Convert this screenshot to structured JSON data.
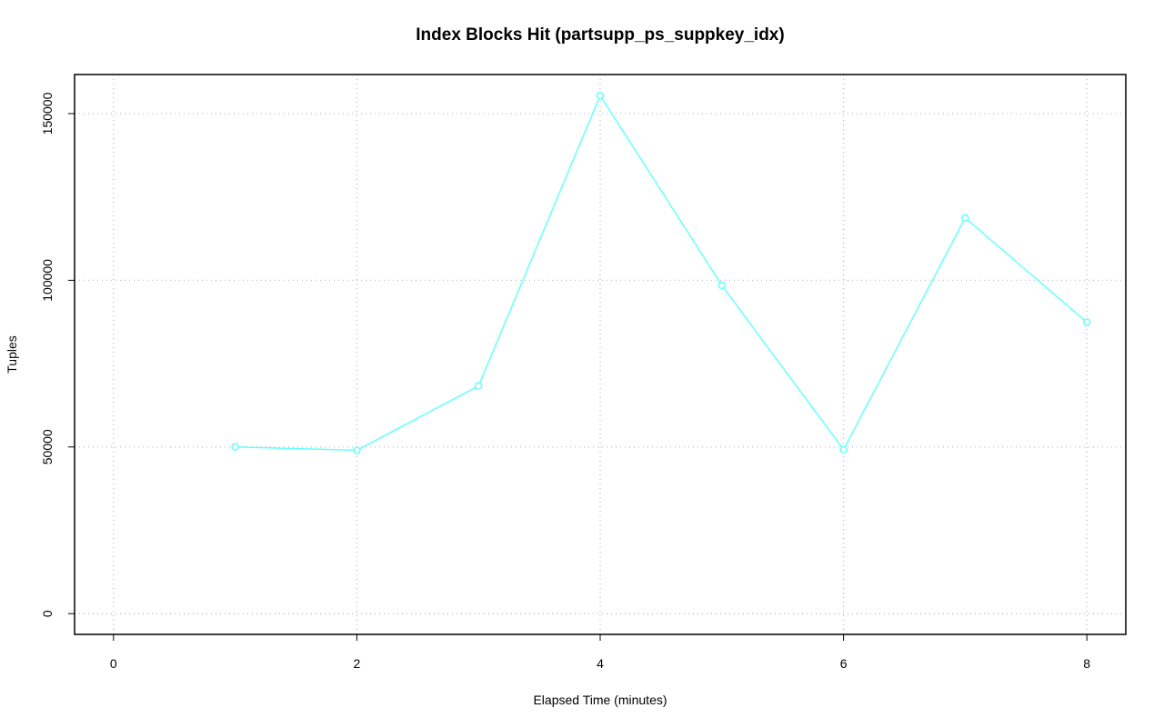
{
  "chart_data": {
    "type": "line",
    "title": "Index Blocks Hit (partsupp_ps_suppkey_idx)",
    "x_label": "Elapsed Time (minutes)",
    "y_label": "Tuples",
    "x": [
      1,
      2,
      3,
      4,
      5,
      6,
      7,
      8
    ],
    "series": [
      {
        "color": "#66ffff",
        "values": [
          50000,
          49000,
          68300,
          155400,
          98500,
          49200,
          118700,
          87400
        ]
      }
    ],
    "xlim": [
      -0.32,
      8.32
    ],
    "ylim": [
      -6220,
      161720
    ],
    "xticks": [
      0,
      2,
      4,
      6,
      8
    ],
    "yticks": [
      0,
      50000,
      100000,
      150000
    ],
    "grid": true
  }
}
